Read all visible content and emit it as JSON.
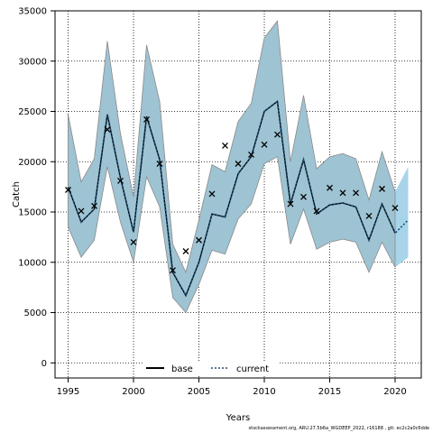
{
  "chart_data": {
    "type": "line",
    "xlabel": "Years",
    "ylabel": "Catch",
    "xlim": [
      1994.0,
      2022.0
    ],
    "ylim": [
      -1500,
      35000
    ],
    "x_ticks": [
      1995,
      2000,
      2005,
      2010,
      2015,
      2020
    ],
    "y_ticks": [
      0,
      5000,
      10000,
      15000,
      20000,
      25000,
      30000,
      35000
    ],
    "grid": true,
    "legend_position": "bottom-center",
    "colors": {
      "band_base": "#9ec3d3",
      "band_base_edge": "#8a8a8a",
      "band_current": "#a7d4e8",
      "line_current": "#1a4f7a",
      "line_base": "#000000",
      "observed_marker": "#000000"
    },
    "legend": [
      {
        "name": "base",
        "style": "solid"
      },
      {
        "name": "current",
        "style": "dotted"
      }
    ],
    "observed_marker": "x",
    "series": [
      {
        "name": "base",
        "x": [
          1995,
          1996,
          1997,
          1998,
          1999,
          2000,
          2001,
          2002,
          2003,
          2004,
          2005,
          2006,
          2007,
          2008,
          2009,
          2010,
          2011,
          2012,
          2013,
          2014,
          2015,
          2016,
          2017,
          2018,
          2019,
          2020
        ],
        "median": [
          17500,
          14000,
          15300,
          24700,
          18400,
          13000,
          24500,
          20200,
          9000,
          6700,
          10000,
          14800,
          14500,
          18800,
          20500,
          25000,
          26000,
          15800,
          20200,
          14800,
          15700,
          15900,
          15500,
          12200,
          15800,
          12900
        ],
        "lower": [
          13500,
          10500,
          12200,
          19500,
          14000,
          10000,
          18500,
          15500,
          6500,
          5000,
          7800,
          11200,
          10800,
          14300,
          15800,
          19800,
          20500,
          11800,
          15300,
          11300,
          12000,
          12300,
          12000,
          9000,
          12000,
          9500
        ],
        "upper": [
          24700,
          18000,
          20300,
          32000,
          22800,
          16500,
          31600,
          26000,
          11800,
          9000,
          14200,
          19700,
          19000,
          24000,
          25800,
          32300,
          34000,
          20000,
          26600,
          19300,
          20500,
          20800,
          20300,
          16200,
          21000,
          17000
        ]
      },
      {
        "name": "current",
        "x": [
          1995,
          1996,
          1997,
          1998,
          1999,
          2000,
          2001,
          2002,
          2003,
          2004,
          2005,
          2006,
          2007,
          2008,
          2009,
          2010,
          2011,
          2012,
          2013,
          2014,
          2015,
          2016,
          2017,
          2018,
          2019,
          2020,
          2021
        ],
        "median": [
          17500,
          14000,
          15300,
          24700,
          18400,
          13000,
          24500,
          20200,
          9000,
          6700,
          10000,
          14800,
          14500,
          18800,
          20500,
          25000,
          26000,
          15800,
          20200,
          14800,
          15700,
          15900,
          15500,
          12200,
          15800,
          12900,
          14200
        ],
        "lower": [
          13500,
          10500,
          12200,
          19500,
          14000,
          10000,
          18500,
          15500,
          6500,
          5000,
          7800,
          11200,
          10800,
          14300,
          15800,
          19800,
          20500,
          11800,
          15300,
          11300,
          12000,
          12300,
          12000,
          9000,
          12000,
          9500,
          10500
        ],
        "upper": [
          24700,
          18000,
          20300,
          32000,
          22800,
          16500,
          31600,
          26000,
          11800,
          9000,
          14200,
          19700,
          19000,
          24000,
          25800,
          32300,
          34000,
          20000,
          26600,
          19300,
          20500,
          20800,
          20300,
          16200,
          21000,
          17000,
          19500
        ]
      },
      {
        "name": "observed",
        "x": [
          1995,
          1996,
          1997,
          1998,
          1999,
          2000,
          2001,
          2002,
          2003,
          2004,
          2005,
          2006,
          2007,
          2008,
          2009,
          2010,
          2011,
          2012,
          2013,
          2014,
          2015,
          2016,
          2017,
          2018,
          2019,
          2020
        ],
        "values": [
          17200,
          15100,
          15600,
          23200,
          18100,
          12000,
          24200,
          19800,
          9200,
          11100,
          12200,
          16800,
          21600,
          19800,
          20700,
          21700,
          22700,
          15800,
          16500,
          15100,
          17400,
          16900,
          16900,
          14600,
          17300,
          15400
        ]
      }
    ]
  },
  "footer_text": "stockassessment.org, ARU.27.5b6a_WGDEEP_2022, r16188 , git: ec2c2a0c6dde"
}
